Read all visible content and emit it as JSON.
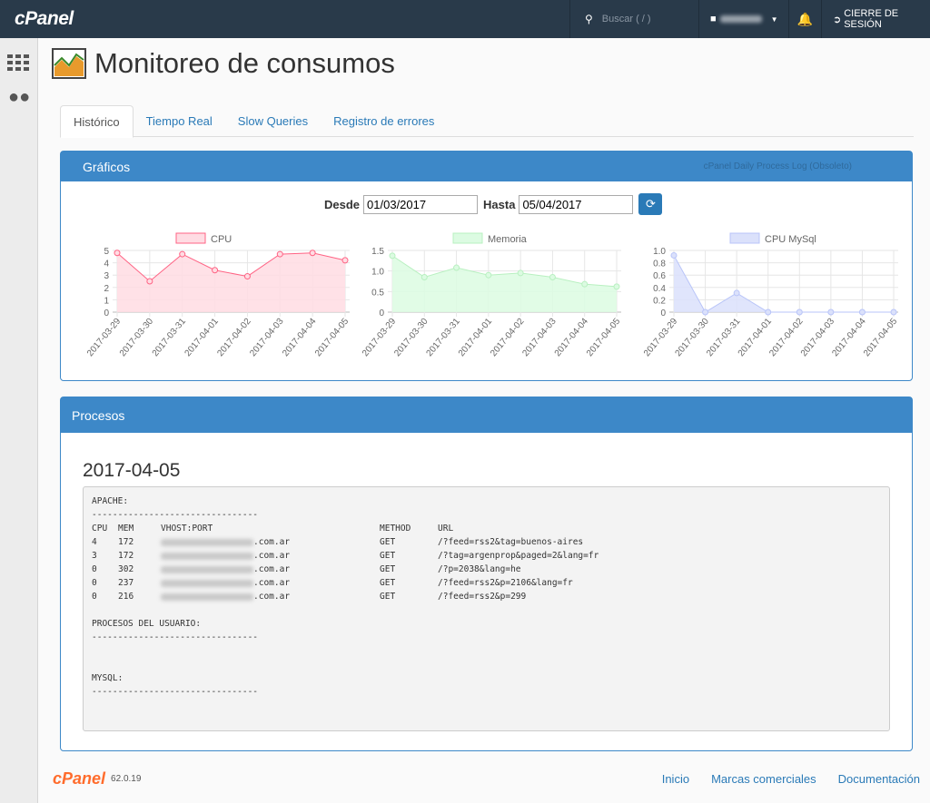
{
  "topbar": {
    "logo": "cPanel",
    "search_placeholder": "Buscar ( / )",
    "logout": "CIERRE DE SESIÓN"
  },
  "page": {
    "title": "Monitoreo de consumos"
  },
  "tabs": [
    {
      "label": "Histórico",
      "active": true
    },
    {
      "label": "Tiempo Real"
    },
    {
      "label": "Slow Queries"
    },
    {
      "label": "Registro de errores"
    }
  ],
  "graficos": {
    "title": "Gráficos",
    "link": "cPanel Daily Process Log (Obsoleto)",
    "desde_label": "Desde",
    "desde": "01/03/2017",
    "hasta_label": "Hasta",
    "hasta": "05/04/2017"
  },
  "chart_data": [
    {
      "type": "line",
      "fill": true,
      "categories": [
        "2017-03-29",
        "2017-03-30",
        "2017-03-31",
        "2017-04-01",
        "2017-04-02",
        "2017-04-03",
        "2017-04-04",
        "2017-04-05"
      ],
      "series": [
        {
          "name": "CPU",
          "values": [
            4.8,
            2.5,
            4.7,
            3.4,
            2.9,
            4.7,
            4.8,
            4.2
          ]
        }
      ],
      "ylim": [
        0,
        5
      ],
      "yticks": [
        "0",
        "1",
        "2",
        "3",
        "4",
        "5"
      ],
      "color": "#ff6384",
      "fill_color": "#ffdce3",
      "legend": "top"
    },
    {
      "type": "line",
      "fill": true,
      "categories": [
        "2017-03-29",
        "2017-03-30",
        "2017-03-31",
        "2017-04-01",
        "2017-04-02",
        "2017-04-03",
        "2017-04-04",
        "2017-04-05"
      ],
      "series": [
        {
          "name": "Memoria",
          "values": [
            1.37,
            0.85,
            1.08,
            0.9,
            0.95,
            0.85,
            0.68,
            0.62
          ]
        }
      ],
      "ylim": [
        0,
        1.5
      ],
      "yticks": [
        "0",
        "0.5",
        "1.0",
        "1.5"
      ],
      "color": "#b8f0c0",
      "fill_color": "#dcfbe2",
      "legend": "top"
    },
    {
      "type": "line",
      "fill": true,
      "categories": [
        "2017-03-29",
        "2017-03-30",
        "2017-03-31",
        "2017-04-01",
        "2017-04-02",
        "2017-04-03",
        "2017-04-04",
        "2017-04-05"
      ],
      "series": [
        {
          "name": "CPU MySql",
          "values": [
            0.92,
            0,
            0.31,
            0,
            0,
            0,
            0,
            0
          ]
        }
      ],
      "ylim": [
        0,
        1.0
      ],
      "yticks": [
        "0",
        "0.2",
        "0.4",
        "0.6",
        "0.8",
        "1.0"
      ],
      "color": "#b8c4f8",
      "fill_color": "#dbe1fb",
      "legend": "top"
    }
  ],
  "procesos": {
    "title": "Procesos",
    "date": "2017-04-05",
    "apache_label": "APACHE:",
    "sep": "--------------------------------",
    "headers": [
      "CPU",
      "MEM",
      "VHOST:PORT",
      "METHOD",
      "URL"
    ],
    "rows": [
      [
        "4",
        "172",
        ".com.ar",
        "GET",
        "/?feed=rss2&tag=buenos-aires"
      ],
      [
        "3",
        "172",
        ".com.ar",
        "GET",
        "/?tag=argenprop&paged=2&lang=fr"
      ],
      [
        "0",
        "302",
        ".com.ar",
        "GET",
        "/?p=2038&lang=he"
      ],
      [
        "0",
        "237",
        ".com.ar",
        "GET",
        "/?feed=rss2&p=2106&lang=fr"
      ],
      [
        "0",
        "216",
        ".com.ar",
        "GET",
        "/?feed=rss2&p=299"
      ]
    ],
    "user_label": "PROCESOS DEL USUARIO:",
    "mysql_label": "MYSQL:"
  },
  "footer": {
    "logo": "cPanel",
    "version": "62.0.19",
    "links": [
      "Inicio",
      "Marcas comerciales",
      "Documentación"
    ]
  }
}
